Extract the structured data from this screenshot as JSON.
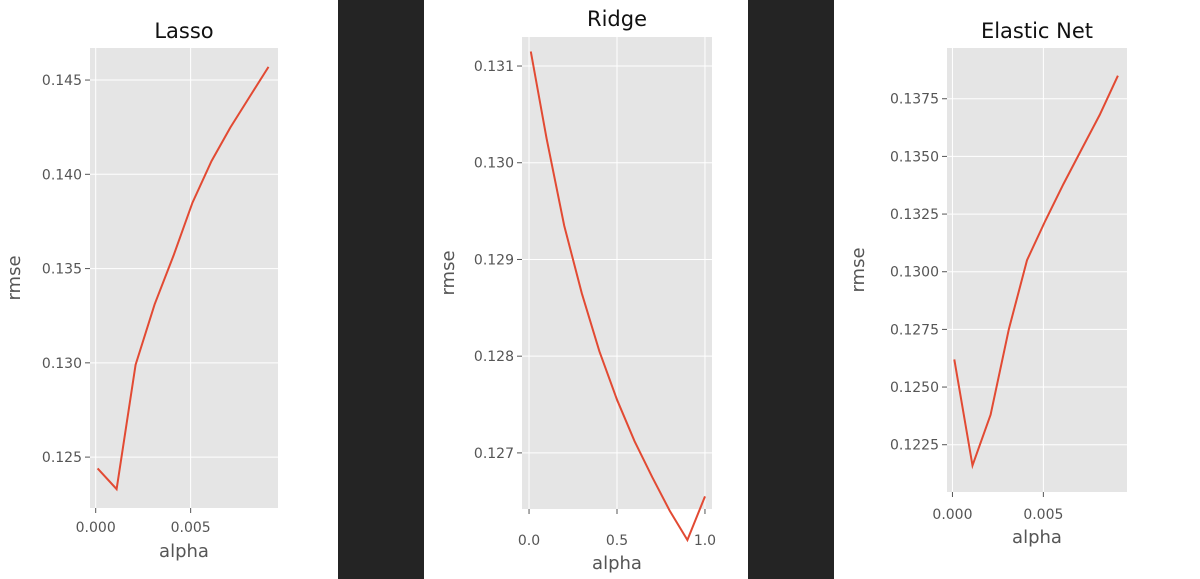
{
  "chart_data": [
    {
      "type": "line",
      "title": "Lasso",
      "xlabel": "alpha",
      "ylabel": "rmse",
      "xlim": [
        -0.0003,
        0.0096
      ],
      "ylim": [
        0.1223,
        0.1467
      ],
      "xticks": [
        0.0,
        0.005
      ],
      "xtick_labels": [
        "0.000",
        "0.005"
      ],
      "yticks": [
        0.125,
        0.13,
        0.135,
        0.14,
        0.145
      ],
      "ytick_labels": [
        "0.125",
        "0.130",
        "0.135",
        "0.140",
        "0.145"
      ],
      "grid": true,
      "color": "#e24a33",
      "x": [
        0.0001,
        0.0011,
        0.0021,
        0.0031,
        0.0041,
        0.0051,
        0.0061,
        0.0071,
        0.0081,
        0.0091
      ],
      "y": [
        0.1244,
        0.1233,
        0.1299,
        0.1331,
        0.1357,
        0.1385,
        0.1407,
        0.1425,
        0.1441,
        0.1457
      ]
    },
    {
      "type": "line",
      "title": "Ridge",
      "xlabel": "alpha",
      "ylabel": "rmse",
      "xlim": [
        -0.04,
        1.04
      ],
      "ylim": [
        0.12642,
        0.1313
      ],
      "xticks": [
        0.0,
        0.5,
        1.0
      ],
      "xtick_labels": [
        "0.0",
        "0.5",
        "1.0"
      ],
      "yticks": [
        0.127,
        0.128,
        0.129,
        0.13,
        0.131
      ],
      "ytick_labels": [
        "0.127",
        "0.128",
        "0.129",
        "0.130",
        "0.131"
      ],
      "grid": true,
      "color": "#e24a33",
      "x": [
        0.01,
        0.1,
        0.2,
        0.3,
        0.4,
        0.5,
        0.6,
        0.7,
        0.8,
        0.9,
        1.0
      ],
      "y": [
        0.13115,
        0.13025,
        0.12935,
        0.12865,
        0.12805,
        0.12755,
        0.12712,
        0.12675,
        0.1264,
        0.1261,
        0.12655
      ]
    },
    {
      "type": "line",
      "title": "Elastic Net",
      "xlabel": "alpha",
      "ylabel": "rmse",
      "xlim": [
        -0.0003,
        0.0096
      ],
      "ylim": [
        0.12045,
        0.1397
      ],
      "xticks": [
        0.0,
        0.005
      ],
      "xtick_labels": [
        "0.000",
        "0.005"
      ],
      "yticks": [
        0.1225,
        0.125,
        0.1275,
        0.13,
        0.1325,
        0.135,
        0.1375
      ],
      "ytick_labels": [
        "0.1225",
        "0.1250",
        "0.1275",
        "0.1300",
        "0.1325",
        "0.1350",
        "0.1375"
      ],
      "grid": true,
      "color": "#e24a33",
      "x": [
        0.0001,
        0.0011,
        0.0021,
        0.0031,
        0.0041,
        0.0051,
        0.0061,
        0.0071,
        0.0081,
        0.0091
      ],
      "y": [
        0.1262,
        0.1216,
        0.1238,
        0.1275,
        0.1305,
        0.1322,
        0.1338,
        0.1353,
        0.1368,
        0.1385
      ]
    }
  ]
}
